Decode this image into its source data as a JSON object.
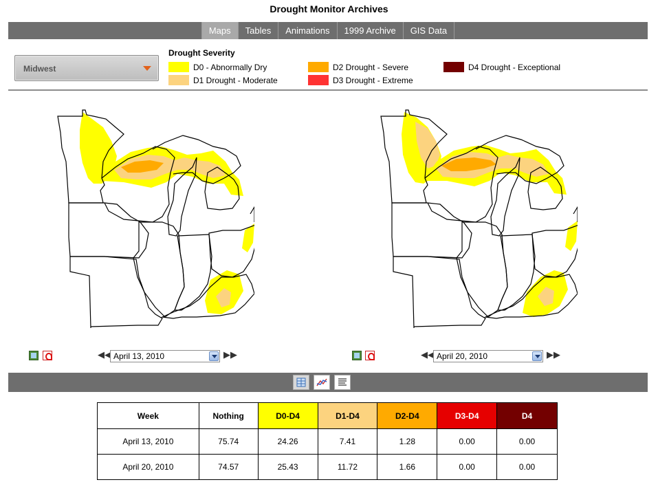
{
  "page": {
    "title": "Drought Monitor Archives"
  },
  "nav": {
    "tabs": [
      {
        "label": "Maps",
        "active": true
      },
      {
        "label": "Tables",
        "active": false
      },
      {
        "label": "Animations",
        "active": false
      },
      {
        "label": "1999 Archive",
        "active": false
      },
      {
        "label": "GIS Data",
        "active": false
      }
    ]
  },
  "region": {
    "selected": "Midwest"
  },
  "legend": {
    "title": "Drought Severity",
    "items": [
      {
        "label": "D0 - Abnormally Dry",
        "color": "#ffff00"
      },
      {
        "label": "D1 Drought - Moderate",
        "color": "#fcd37f"
      },
      {
        "label": "D2 Drought - Severe",
        "color": "#ffaa00"
      },
      {
        "label": "D3 Drought - Extreme",
        "color": "#e60000"
      },
      {
        "label": "D4 Drought - Exceptional",
        "color": "#730000"
      }
    ]
  },
  "maps": [
    {
      "date": "April 13, 2010"
    },
    {
      "date": "April 20, 2010"
    }
  ],
  "icons": {
    "image": "image-icon",
    "pdf": "pdf-icon",
    "prev": "double-left-arrow-icon",
    "next": "double-right-arrow-icon",
    "table_view": "table-icon",
    "chart_view": "line-chart-icon",
    "text_view": "text-lines-icon"
  },
  "table": {
    "headers": [
      "Week",
      "Nothing",
      "D0-D4",
      "D1-D4",
      "D2-D4",
      "D3-D4",
      "D4"
    ],
    "header_colors": [
      "#ffffff",
      "#ffffff",
      "#ffff00",
      "#fcd37f",
      "#ffaa00",
      "#e60000",
      "#730000"
    ],
    "header_text_colors": [
      "#000000",
      "#000000",
      "#000000",
      "#000000",
      "#000000",
      "#ffffff",
      "#ffffff"
    ],
    "rows": [
      [
        "April 13, 2010",
        "75.74",
        "24.26",
        "7.41",
        "1.28",
        "0.00",
        "0.00"
      ],
      [
        "April 20, 2010",
        "74.57",
        "25.43",
        "11.72",
        "1.66",
        "0.00",
        "0.00"
      ]
    ]
  }
}
